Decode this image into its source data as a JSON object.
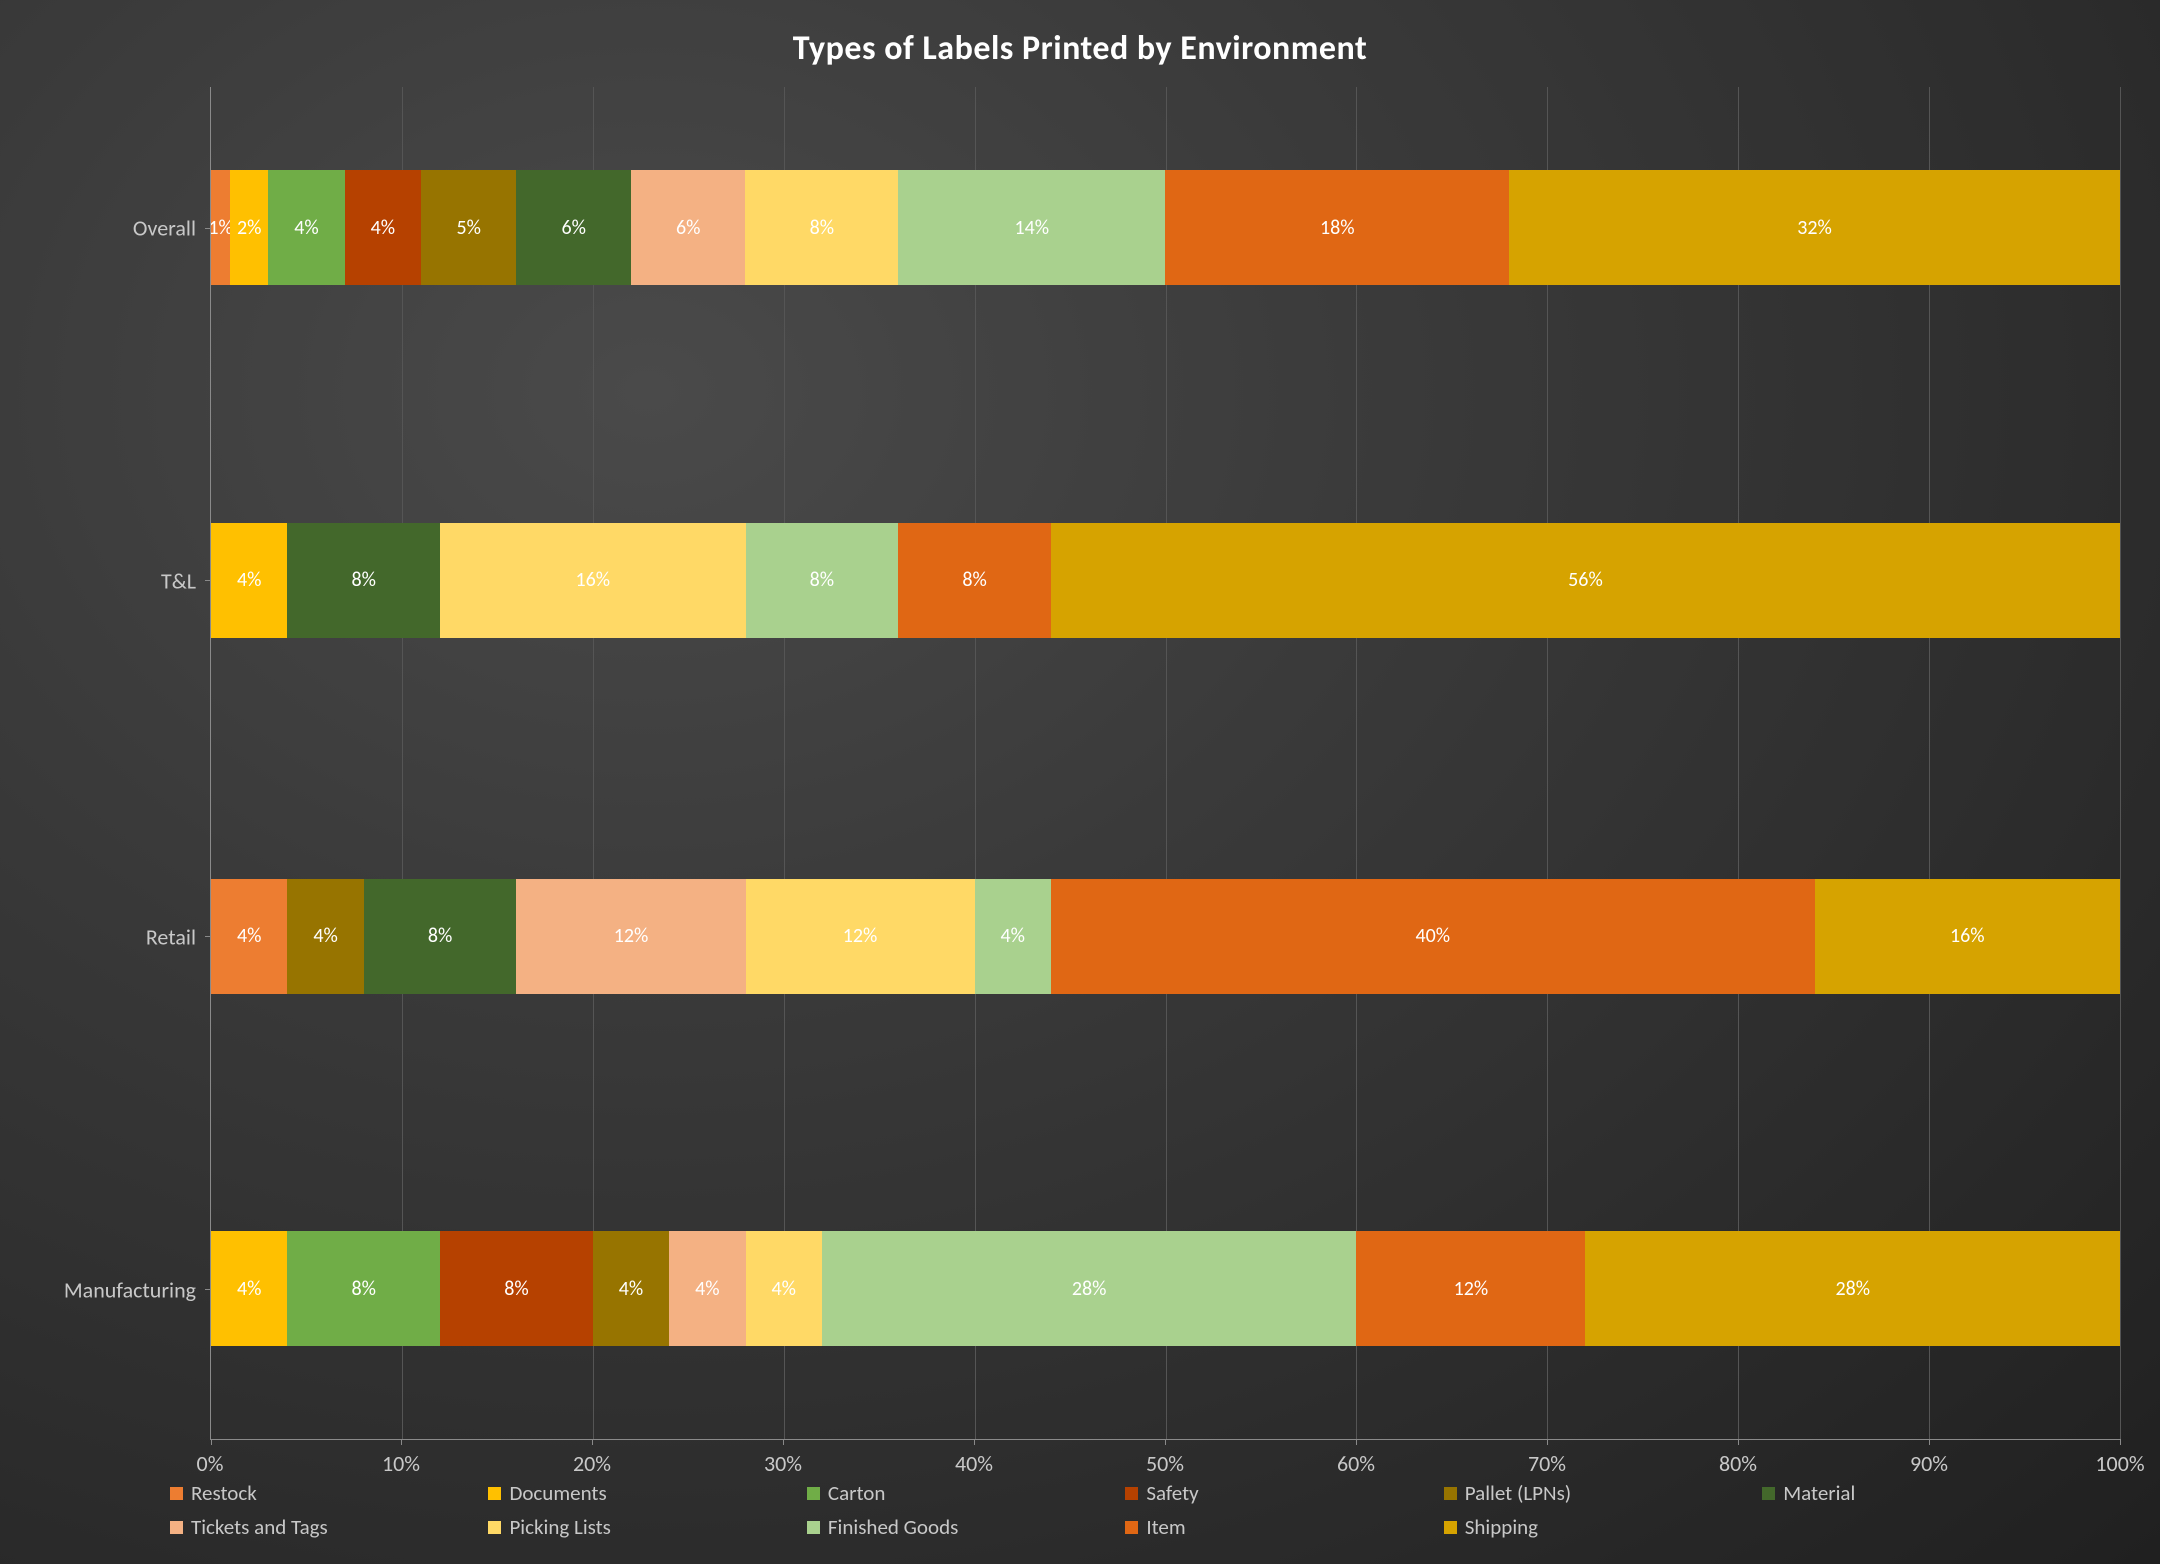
{
  "chart": {
    "type": "stacked-bar-100pct",
    "orientation": "horizontal",
    "title": "Types of Labels Printed by Environment",
    "title_fontsize": 34,
    "title_color": "#ffffff",
    "title_weight": 700,
    "background": "radial-dark-gray",
    "axis_color": "#8a8a8a",
    "grid_color": "#555555",
    "label_color": "#c8c8c8",
    "label_fontsize": 22,
    "datalabel_color": "#ffffff",
    "datalabel_fontsize": 20,
    "xlim": [
      0,
      100
    ],
    "xtick_step": 10,
    "xtick_labels": [
      "0%",
      "10%",
      "20%",
      "30%",
      "40%",
      "50%",
      "60%",
      "70%",
      "80%",
      "90%",
      "100%"
    ],
    "categories_top_to_bottom": [
      "Overall",
      "T&L",
      "Retail",
      "Manufacturing"
    ],
    "bar_thickness_pct": 8.5,
    "bar_centers_pct_from_top": [
      10.4,
      36.5,
      62.8,
      88.9
    ],
    "series": [
      {
        "key": "restock",
        "label": "Restock",
        "color": "#ed7d31"
      },
      {
        "key": "documents",
        "label": "Documents",
        "color": "#ffc000"
      },
      {
        "key": "carton",
        "label": "Carton",
        "color": "#70ad47"
      },
      {
        "key": "safety",
        "label": "Safety",
        "color": "#b64100"
      },
      {
        "key": "pallet",
        "label": "Pallet (LPNs)",
        "color": "#977400"
      },
      {
        "key": "material",
        "label": "Material",
        "color": "#43682b"
      },
      {
        "key": "tickets",
        "label": "Tickets and Tags",
        "color": "#f4b183"
      },
      {
        "key": "picking",
        "label": "Picking Lists",
        "color": "#ffd966"
      },
      {
        "key": "finished",
        "label": "Finished Goods",
        "color": "#a9d18e"
      },
      {
        "key": "item",
        "label": "Item",
        "color": "#e06714"
      },
      {
        "key": "shipping",
        "label": "Shipping",
        "color": "#d6a300"
      }
    ],
    "rows": {
      "Overall": {
        "segments": [
          {
            "series": "restock",
            "value": 1,
            "label": "1%"
          },
          {
            "series": "documents",
            "value": 2,
            "label": "2%"
          },
          {
            "series": "carton",
            "value": 4,
            "label": "4%"
          },
          {
            "series": "safety",
            "value": 4,
            "label": "4%"
          },
          {
            "series": "pallet",
            "value": 5,
            "label": "5%"
          },
          {
            "series": "material",
            "value": 6,
            "label": "6%"
          },
          {
            "series": "tickets",
            "value": 6,
            "label": "6%"
          },
          {
            "series": "picking",
            "value": 8,
            "label": "8%"
          },
          {
            "series": "finished",
            "value": 14,
            "label": "14%"
          },
          {
            "series": "item",
            "value": 18,
            "label": "18%"
          },
          {
            "series": "shipping",
            "value": 32,
            "label": "32%"
          }
        ]
      },
      "T&L": {
        "segments": [
          {
            "series": "documents",
            "value": 4,
            "label": "4%"
          },
          {
            "series": "material",
            "value": 8,
            "label": "8%"
          },
          {
            "series": "picking",
            "value": 16,
            "label": "16%"
          },
          {
            "series": "finished",
            "value": 8,
            "label": "8%"
          },
          {
            "series": "item",
            "value": 8,
            "label": "8%"
          },
          {
            "series": "shipping",
            "value": 56,
            "label": "56%"
          }
        ]
      },
      "Retail": {
        "segments": [
          {
            "series": "restock",
            "value": 4,
            "label": "4%"
          },
          {
            "series": "pallet",
            "value": 4,
            "label": "4%"
          },
          {
            "series": "material",
            "value": 8,
            "label": "8%"
          },
          {
            "series": "tickets",
            "value": 12,
            "label": "12%"
          },
          {
            "series": "picking",
            "value": 12,
            "label": "12%"
          },
          {
            "series": "finished",
            "value": 4,
            "label": "4%"
          },
          {
            "series": "item",
            "value": 40,
            "label": "40%"
          },
          {
            "series": "shipping",
            "value": 16,
            "label": "16%"
          }
        ]
      },
      "Manufacturing": {
        "segments": [
          {
            "series": "documents",
            "value": 4,
            "label": "4%"
          },
          {
            "series": "carton",
            "value": 8,
            "label": "8%"
          },
          {
            "series": "safety",
            "value": 8,
            "label": "8%"
          },
          {
            "series": "pallet",
            "value": 4,
            "label": "4%"
          },
          {
            "series": "material",
            "value": 0,
            "label": "0%"
          },
          {
            "series": "tickets",
            "value": 4,
            "label": "4%"
          },
          {
            "series": "picking",
            "value": 4,
            "label": "4%"
          },
          {
            "series": "finished",
            "value": 28,
            "label": "28%"
          },
          {
            "series": "item",
            "value": 12,
            "label": "12%"
          },
          {
            "series": "shipping",
            "value": 28,
            "label": "28%"
          }
        ]
      }
    },
    "legend": {
      "position": "bottom",
      "item_width_pct": 16.5,
      "fontsize": 21
    }
  }
}
